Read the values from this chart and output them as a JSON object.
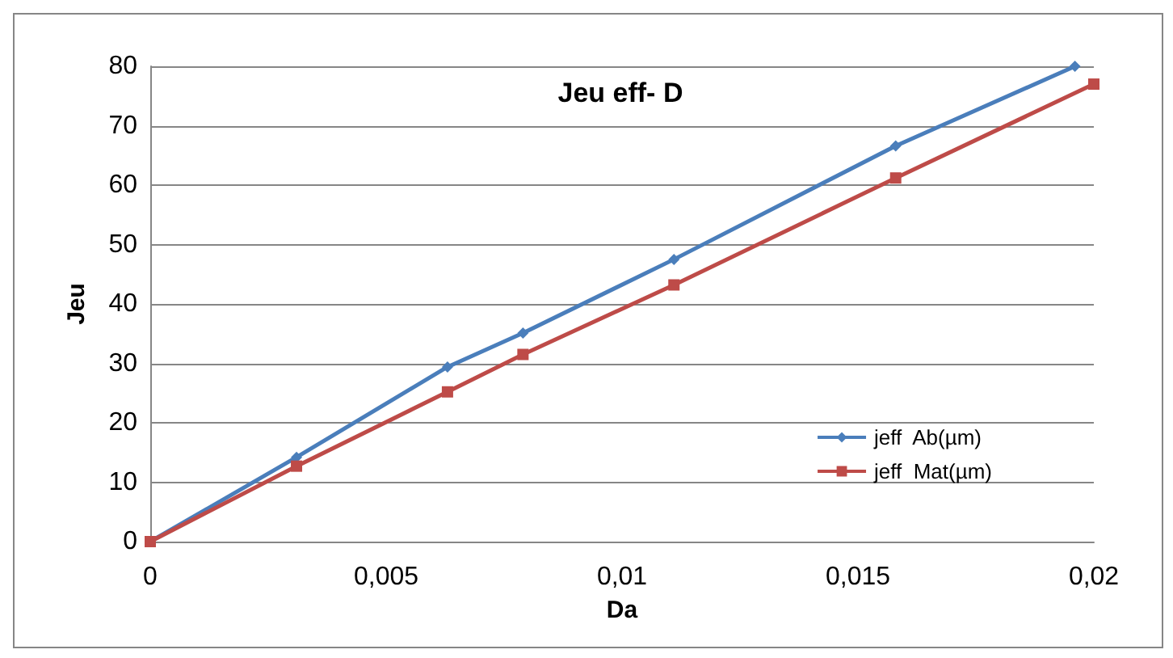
{
  "chart_data": {
    "type": "line",
    "title": "Jeu eff- D",
    "xlabel": "Da",
    "ylabel": "Jeu",
    "xlim": [
      0,
      0.02
    ],
    "xticks": [
      0,
      {
        "value": 0.005,
        "label": "0,005"
      },
      {
        "value": 0.01,
        "label": "0,01"
      },
      {
        "value": 0.015,
        "label": "0,015"
      },
      {
        "value": 0.02,
        "label": "0,02"
      }
    ],
    "ylim": [
      0,
      80
    ],
    "yticks": [
      0,
      10,
      20,
      30,
      40,
      50,
      60,
      70,
      80
    ],
    "grid": "y",
    "legend": "right",
    "series": [
      {
        "name": "jeff  Ab(µm)",
        "color": "#4a7ebb",
        "marker": "diamond",
        "x": [
          0,
          0.0031,
          0.0063,
          0.0079,
          0.0111,
          0.0158,
          0.0196
        ],
        "values": [
          0,
          14.2,
          29.4,
          35.1,
          47.5,
          66.6,
          80
        ]
      },
      {
        "name": "jeff  Mat(µm)",
        "color": "#be4b48",
        "marker": "square",
        "x": [
          0,
          0.0031,
          0.0063,
          0.0079,
          0.0111,
          0.0158,
          0.02
        ],
        "values": [
          0,
          12.7,
          25.2,
          31.5,
          43.2,
          61.2,
          77
        ]
      }
    ]
  }
}
